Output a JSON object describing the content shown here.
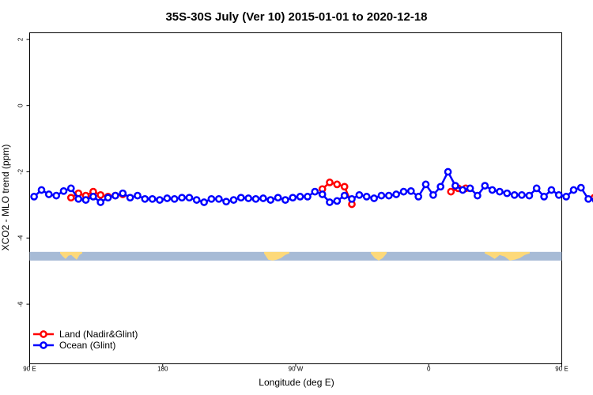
{
  "chart_data": {
    "type": "line",
    "title": "35S-30S July (Ver 10)   2015-01-01 to 2020-12-18",
    "xlabel": "Longitude (deg E)",
    "ylabel": "XCO2 - MLO trend (ppm)",
    "xlim": [
      90,
      450
    ],
    "ylim": [
      -7.8,
      2.2
    ],
    "x_ticks": [
      {
        "value": 90,
        "label": "90 E"
      },
      {
        "value": 180,
        "label": "180"
      },
      {
        "value": 270,
        "label": "90 W"
      },
      {
        "value": 360,
        "label": "0"
      },
      {
        "value": 450,
        "label": "90 E"
      },
      {
        "value": 540,
        "label": "180"
      }
    ],
    "y_ticks": [
      {
        "value": 2,
        "label": "2"
      },
      {
        "value": 0,
        "label": "0"
      },
      {
        "value": -2,
        "label": "-2"
      },
      {
        "value": -4,
        "label": "-4"
      },
      {
        "value": -6,
        "label": "-6"
      }
    ],
    "land_band": {
      "y_center": -4.55,
      "ocean_color": "#a7bbd6",
      "land_color": "#fdd97a"
    },
    "legend": {
      "position": "bottom-left"
    },
    "series": [
      {
        "name": "Land (Nadir&Glint)",
        "color": "#ff0000",
        "segments": [
          {
            "x": [
              118,
              123,
              128,
              133,
              138,
              143,
              148,
              153
            ],
            "y": [
              -2.78,
              -2.65,
              -2.72,
              -2.6,
              -2.7,
              -2.75,
              -2.72,
              -2.68
            ]
          },
          {
            "x": [
              288,
              293,
              298,
              303,
              308
            ],
            "y": [
              -2.52,
              -2.32,
              -2.38,
              -2.45,
              -2.98
            ]
          },
          {
            "x": [
              375,
              380,
              385
            ],
            "y": [
              -2.6,
              -2.5,
              -2.5
            ]
          },
          {
            "x": [
              472,
              477,
              482,
              487,
              492,
              497,
              502
            ],
            "y": [
              -2.78,
              -2.72,
              -2.78,
              -2.6,
              -2.7,
              -2.72,
              -2.75
            ]
          }
        ]
      },
      {
        "name": "Ocean (Glint)",
        "color": "#0000ff",
        "segments": [
          {
            "x": [
              93,
              98,
              103,
              108,
              113,
              118,
              123,
              128,
              133,
              138,
              143,
              148,
              153,
              158,
              163,
              168,
              173,
              178,
              183,
              188,
              193,
              198,
              203,
              208,
              213,
              218,
              223,
              228,
              233,
              238,
              243,
              248,
              253,
              258,
              263,
              268,
              273,
              278,
              283,
              288,
              293,
              298,
              303,
              308,
              313,
              318,
              323,
              328,
              333,
              338,
              343,
              348,
              353,
              358,
              363,
              368,
              373,
              378,
              383,
              388,
              393,
              398,
              403,
              408,
              413,
              418,
              423,
              428,
              433,
              438,
              443,
              448,
              453,
              458,
              463,
              468,
              473,
              478,
              483,
              488,
              493,
              498,
              503,
              508,
              513,
              518,
              523,
              528,
              533,
              538
            ],
            "y": [
              -2.75,
              -2.55,
              -2.68,
              -2.72,
              -2.58,
              -2.5,
              -2.82,
              -2.85,
              -2.75,
              -2.92,
              -2.78,
              -2.72,
              -2.65,
              -2.78,
              -2.72,
              -2.82,
              -2.82,
              -2.85,
              -2.8,
              -2.82,
              -2.78,
              -2.78,
              -2.85,
              -2.92,
              -2.82,
              -2.82,
              -2.9,
              -2.85,
              -2.78,
              -2.8,
              -2.82,
              -2.8,
              -2.85,
              -2.78,
              -2.85,
              -2.78,
              -2.75,
              -2.75,
              -2.6,
              -2.68,
              -2.92,
              -2.88,
              -2.72,
              -2.82,
              -2.7,
              -2.75,
              -2.8,
              -2.72,
              -2.72,
              -2.68,
              -2.6,
              -2.58,
              -2.75,
              -2.38,
              -2.7,
              -2.45,
              -2.0,
              -2.42,
              -2.55,
              -2.5,
              -2.72,
              -2.42,
              -2.55,
              -2.6,
              -2.65,
              -2.7,
              -2.7,
              -2.72,
              -2.5,
              -2.75,
              -2.55,
              -2.7,
              -2.75,
              -2.55,
              -2.48,
              -2.82,
              -2.85,
              -2.82,
              -2.75,
              -2.97,
              -2.72,
              -2.75,
              -2.68,
              -2.8,
              -2.72,
              -2.8,
              -2.85,
              -2.82,
              -2.82,
              -2.85
            ]
          }
        ]
      }
    ]
  }
}
